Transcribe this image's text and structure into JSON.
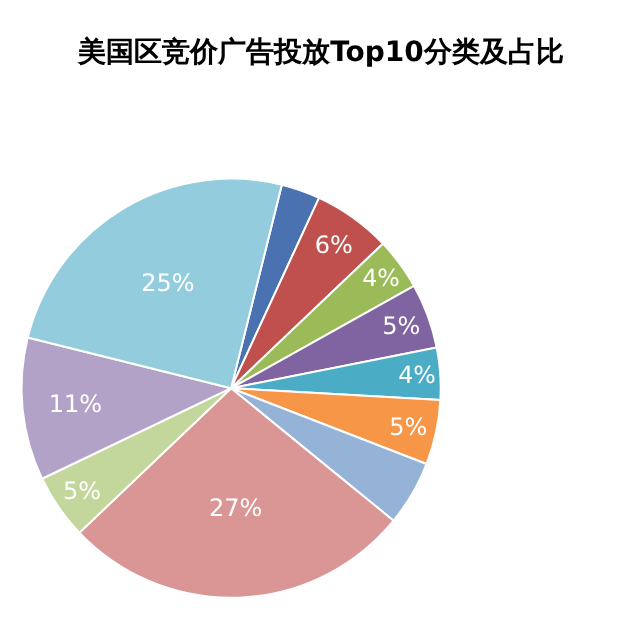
{
  "chart_data": {
    "type": "pie",
    "title": "美国区竞价广告投放Top10分类及占比",
    "categories": [
      null,
      null,
      null,
      null,
      null,
      null,
      null,
      null,
      null,
      null,
      null
    ],
    "values": [
      3,
      6,
      4,
      5,
      4,
      5,
      5,
      27,
      5,
      11,
      25
    ],
    "value_labels": [
      null,
      "6%",
      "4%",
      "5%",
      "4%",
      "5%",
      null,
      "27%",
      "5%",
      "11%",
      "25%"
    ],
    "colors": [
      "#4a72b0",
      "#c0504d",
      "#9bbb59",
      "#8064a2",
      "#4bacc6",
      "#f79646",
      "#95b3d7",
      "#d99694",
      "#c3d69b",
      "#b3a2c7",
      "#93cddd"
    ],
    "legend": false
  }
}
